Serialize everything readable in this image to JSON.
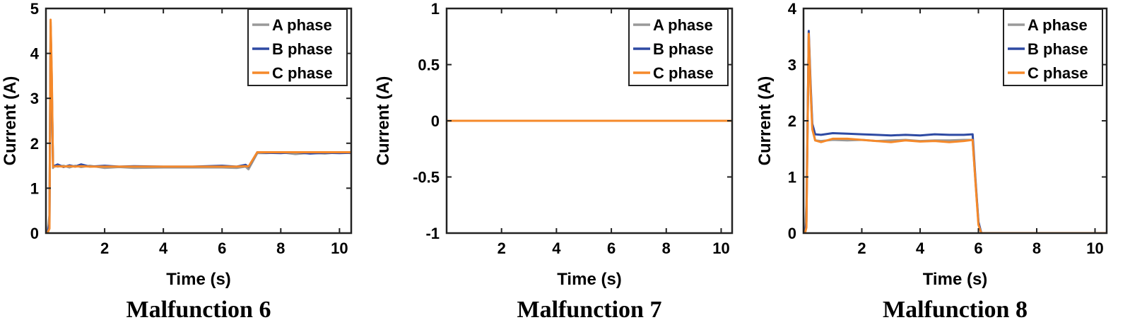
{
  "chart_data": [
    {
      "type": "line",
      "caption": "Malfunction 6",
      "xlabel": "Time (s)",
      "ylabel": "Current (A)",
      "xlim": [
        0,
        10.4
      ],
      "ylim": [
        0,
        5
      ],
      "xticks": [
        2,
        4,
        6,
        8,
        10
      ],
      "yticks": [
        0,
        1,
        2,
        3,
        4,
        5
      ],
      "legend_position": "top-right",
      "series": [
        {
          "name": "A phase",
          "color": "#999999",
          "x": [
            0.05,
            0.12,
            0.16,
            0.2,
            0.24,
            0.28,
            0.4,
            0.6,
            0.8,
            1.0,
            1.2,
            1.5,
            2.0,
            2.5,
            3.0,
            4.0,
            5.0,
            6.0,
            6.5,
            6.8,
            6.9,
            7.2,
            7.5,
            8.0,
            8.5,
            9.0,
            9.5,
            10.0,
            10.4
          ],
          "y": [
            0,
            0.4,
            4.7,
            3.4,
            1.45,
            1.5,
            1.48,
            1.5,
            1.46,
            1.5,
            1.47,
            1.5,
            1.45,
            1.47,
            1.45,
            1.46,
            1.46,
            1.46,
            1.45,
            1.48,
            1.42,
            1.78,
            1.78,
            1.8,
            1.76,
            1.79,
            1.77,
            1.8,
            1.78
          ]
        },
        {
          "name": "B phase",
          "color": "#2e4aa3",
          "x": [
            0.05,
            0.12,
            0.16,
            0.2,
            0.24,
            0.28,
            0.4,
            0.6,
            0.8,
            1.0,
            1.2,
            1.5,
            2.0,
            2.5,
            3.0,
            4.0,
            5.0,
            6.0,
            6.5,
            6.8,
            6.9,
            7.2,
            7.5,
            8.0,
            8.5,
            9.0,
            9.5,
            10.0,
            10.4
          ],
          "y": [
            0,
            0.2,
            4.6,
            3.2,
            1.52,
            1.49,
            1.53,
            1.47,
            1.51,
            1.48,
            1.53,
            1.48,
            1.5,
            1.48,
            1.49,
            1.48,
            1.48,
            1.5,
            1.48,
            1.52,
            1.47,
            1.8,
            1.79,
            1.78,
            1.8,
            1.77,
            1.79,
            1.78,
            1.79
          ]
        },
        {
          "name": "C phase",
          "color": "#f5892a",
          "x": [
            0.05,
            0.12,
            0.16,
            0.2,
            0.24,
            0.28,
            0.4,
            0.6,
            0.8,
            1.0,
            1.2,
            1.5,
            2.0,
            2.5,
            3.0,
            4.0,
            5.0,
            6.0,
            6.5,
            6.8,
            6.9,
            7.2,
            7.5,
            8.0,
            8.5,
            9.0,
            9.5,
            10.0,
            10.4
          ],
          "y": [
            0,
            0.1,
            4.75,
            3.5,
            1.48,
            1.48,
            1.49,
            1.48,
            1.49,
            1.48,
            1.49,
            1.48,
            1.48,
            1.48,
            1.48,
            1.48,
            1.48,
            1.48,
            1.48,
            1.49,
            1.48,
            1.8,
            1.8,
            1.8,
            1.8,
            1.8,
            1.8,
            1.8,
            1.8
          ]
        }
      ]
    },
    {
      "type": "line",
      "caption": "Malfunction 7",
      "xlabel": "Time (s)",
      "ylabel": "Current (A)",
      "xlim": [
        0,
        10.4
      ],
      "ylim": [
        -1,
        1
      ],
      "xticks": [
        2,
        4,
        6,
        8,
        10
      ],
      "yticks": [
        -1,
        -0.5,
        0,
        0.5,
        1
      ],
      "legend_position": "top-right",
      "series": [
        {
          "name": "A phase",
          "color": "#999999",
          "x": [
            0,
            10.4
          ],
          "y": [
            0,
            0
          ]
        },
        {
          "name": "B phase",
          "color": "#2e4aa3",
          "x": [
            0,
            10.4
          ],
          "y": [
            0,
            0
          ]
        },
        {
          "name": "C phase",
          "color": "#f5892a",
          "x": [
            0,
            10.4
          ],
          "y": [
            0,
            0
          ]
        }
      ]
    },
    {
      "type": "line",
      "caption": "Malfunction 8",
      "xlabel": "Time (s)",
      "ylabel": "Current (A)",
      "xlim": [
        0,
        10.4
      ],
      "ylim": [
        0,
        4
      ],
      "xticks": [
        2,
        4,
        6,
        8,
        10
      ],
      "yticks": [
        0,
        1,
        2,
        3,
        4
      ],
      "legend_position": "top-right",
      "series": [
        {
          "name": "A phase",
          "color": "#999999",
          "x": [
            0.05,
            0.1,
            0.18,
            0.24,
            0.3,
            0.4,
            0.6,
            1.0,
            1.5,
            2.0,
            2.5,
            3.0,
            3.5,
            4.0,
            4.5,
            5.0,
            5.5,
            5.8,
            5.9,
            6.0,
            6.1,
            7.0,
            8.0,
            9.0,
            10.4
          ],
          "y": [
            0,
            0.5,
            3.5,
            2.6,
            1.9,
            1.65,
            1.64,
            1.66,
            1.65,
            1.66,
            1.64,
            1.65,
            1.66,
            1.64,
            1.65,
            1.65,
            1.66,
            1.66,
            0.9,
            0.2,
            0,
            0,
            0,
            0,
            0
          ]
        },
        {
          "name": "B phase",
          "color": "#2e4aa3",
          "x": [
            0.05,
            0.1,
            0.18,
            0.24,
            0.3,
            0.4,
            0.6,
            1.0,
            1.5,
            2.0,
            2.5,
            3.0,
            3.5,
            4.0,
            4.5,
            5.0,
            5.5,
            5.8,
            5.9,
            6.0,
            6.1,
            7.0,
            8.0,
            9.0,
            10.4
          ],
          "y": [
            0,
            0.2,
            3.6,
            2.7,
            1.95,
            1.76,
            1.75,
            1.78,
            1.77,
            1.76,
            1.75,
            1.74,
            1.75,
            1.74,
            1.76,
            1.75,
            1.75,
            1.76,
            0.95,
            0.2,
            0,
            0,
            0,
            0,
            0
          ]
        },
        {
          "name": "C phase",
          "color": "#f5892a",
          "x": [
            0.05,
            0.1,
            0.18,
            0.24,
            0.3,
            0.4,
            0.6,
            1.0,
            1.5,
            2.0,
            2.5,
            3.0,
            3.5,
            4.0,
            4.5,
            5.0,
            5.5,
            5.8,
            5.9,
            6.0,
            6.1,
            7.0,
            8.0,
            9.0,
            10.4
          ],
          "y": [
            0,
            0.1,
            3.55,
            2.6,
            1.85,
            1.65,
            1.62,
            1.68,
            1.68,
            1.66,
            1.64,
            1.62,
            1.65,
            1.63,
            1.64,
            1.62,
            1.64,
            1.66,
            0.9,
            0.15,
            0,
            0,
            0,
            0,
            0
          ]
        }
      ]
    }
  ]
}
